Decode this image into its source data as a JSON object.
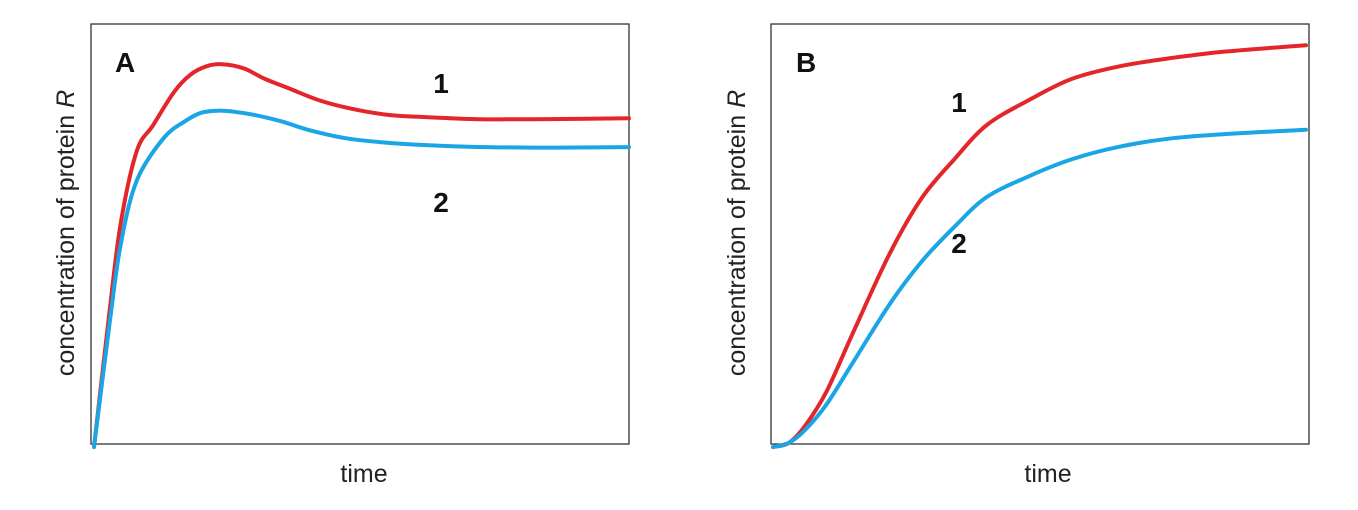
{
  "chart_data": [
    {
      "type": "line",
      "panel_label": "A",
      "xlabel": "time",
      "ylabel_prefix": "concentration of protein ",
      "ylabel_variable": "R",
      "xlim": [
        0,
        10
      ],
      "ylim": [
        0,
        1
      ],
      "grid": false,
      "series": [
        {
          "name": "1",
          "color": "#e3262a",
          "x": [
            0,
            0.3,
            0.5,
            0.8,
            1.1,
            1.5,
            1.8,
            2.1,
            2.4,
            2.8,
            3.2,
            3.7,
            4.2,
            4.8,
            5.5,
            6.2,
            7.2,
            8.2,
            9.2,
            10
          ],
          "y": [
            0,
            0.33,
            0.53,
            0.7,
            0.76,
            0.84,
            0.88,
            0.9,
            0.905,
            0.895,
            0.87,
            0.845,
            0.82,
            0.8,
            0.785,
            0.78,
            0.775,
            0.775,
            0.776,
            0.777
          ]
        },
        {
          "name": "2",
          "color": "#1aa6e6",
          "x": [
            0,
            0.3,
            0.5,
            0.8,
            1.3,
            1.7,
            2.0,
            2.3,
            2.6,
            3.0,
            3.5,
            4.0,
            4.7,
            5.4,
            6.0,
            7.0,
            8.0,
            9.0,
            10
          ],
          "y": [
            0,
            0.3,
            0.48,
            0.63,
            0.73,
            0.77,
            0.79,
            0.795,
            0.793,
            0.785,
            0.77,
            0.75,
            0.73,
            0.72,
            0.715,
            0.71,
            0.708,
            0.708,
            0.709
          ]
        }
      ]
    },
    {
      "type": "line",
      "panel_label": "B",
      "xlabel": "time",
      "ylabel_prefix": "concentration of protein ",
      "ylabel_variable": "R",
      "xlim": [
        0,
        10
      ],
      "ylim": [
        0,
        1
      ],
      "grid": false,
      "series": [
        {
          "name": "1",
          "color": "#e3262a",
          "x": [
            0,
            0.3,
            0.6,
            1.0,
            1.5,
            2.2,
            2.8,
            3.4,
            4.0,
            4.8,
            5.6,
            6.5,
            7.5,
            8.5,
            10
          ],
          "y": [
            0,
            0.01,
            0.05,
            0.13,
            0.27,
            0.46,
            0.59,
            0.68,
            0.76,
            0.82,
            0.87,
            0.9,
            0.92,
            0.935,
            0.95
          ]
        },
        {
          "name": "2",
          "color": "#1aa6e6",
          "x": [
            0,
            0.3,
            0.6,
            1.0,
            1.5,
            2.2,
            2.8,
            3.4,
            4.0,
            4.8,
            5.6,
            6.5,
            7.5,
            8.5,
            10
          ],
          "y": [
            0,
            0.01,
            0.04,
            0.1,
            0.2,
            0.34,
            0.44,
            0.52,
            0.59,
            0.64,
            0.68,
            0.71,
            0.73,
            0.74,
            0.75
          ]
        }
      ]
    }
  ]
}
